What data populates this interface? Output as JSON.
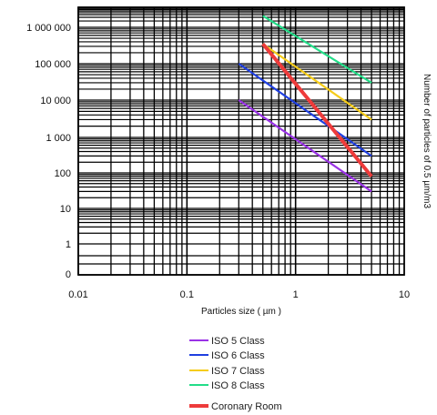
{
  "chart_data": {
    "type": "line",
    "title": "",
    "xlabel": "Particles size ( µm )",
    "ylabel": "Number of particles of 0.5 µm/m3",
    "x_scale": "log",
    "y_scale": "log",
    "xlim": [
      0.01,
      10
    ],
    "ylim": [
      1,
      10000000
    ],
    "grid": true,
    "legend_position": "bottom",
    "x_ticks": [
      {
        "value": 0.01,
        "label": "0.01"
      },
      {
        "value": 0.1,
        "label": "0.1"
      },
      {
        "value": 1,
        "label": "1"
      },
      {
        "value": 10,
        "label": "10"
      }
    ],
    "y_ticks": [
      {
        "value": 1000000,
        "label": "1 000 000"
      },
      {
        "value": 100000,
        "label": "100 000"
      },
      {
        "value": 10000,
        "label": "10 000"
      },
      {
        "value": 1000,
        "label": "1 000"
      },
      {
        "value": 100,
        "label": "100"
      },
      {
        "value": 10,
        "label": "10"
      },
      {
        "value": 1,
        "label": "1"
      },
      {
        "value": 0.1,
        "label": "0"
      }
    ],
    "series": [
      {
        "name": "ISO 5 Class",
        "color": "#9a32e6",
        "x": [
          0.3,
          5
        ],
        "y": [
          10000,
          30
        ]
      },
      {
        "name": "ISO 6 Class",
        "color": "#1f3fe0",
        "x": [
          0.3,
          5
        ],
        "y": [
          100000,
          300
        ]
      },
      {
        "name": "ISO 7 Class",
        "color": "#f5cc1a",
        "x": [
          0.5,
          5
        ],
        "y": [
          350000,
          3000
        ]
      },
      {
        "name": "ISO 8 Class",
        "color": "#22dd88",
        "x": [
          0.5,
          5
        ],
        "y": [
          3500000,
          30000
        ]
      },
      {
        "name": "Coronary Room",
        "color": "#ee3b3b",
        "x": [
          0.5,
          5
        ],
        "y": [
          350000,
          80
        ]
      }
    ]
  }
}
